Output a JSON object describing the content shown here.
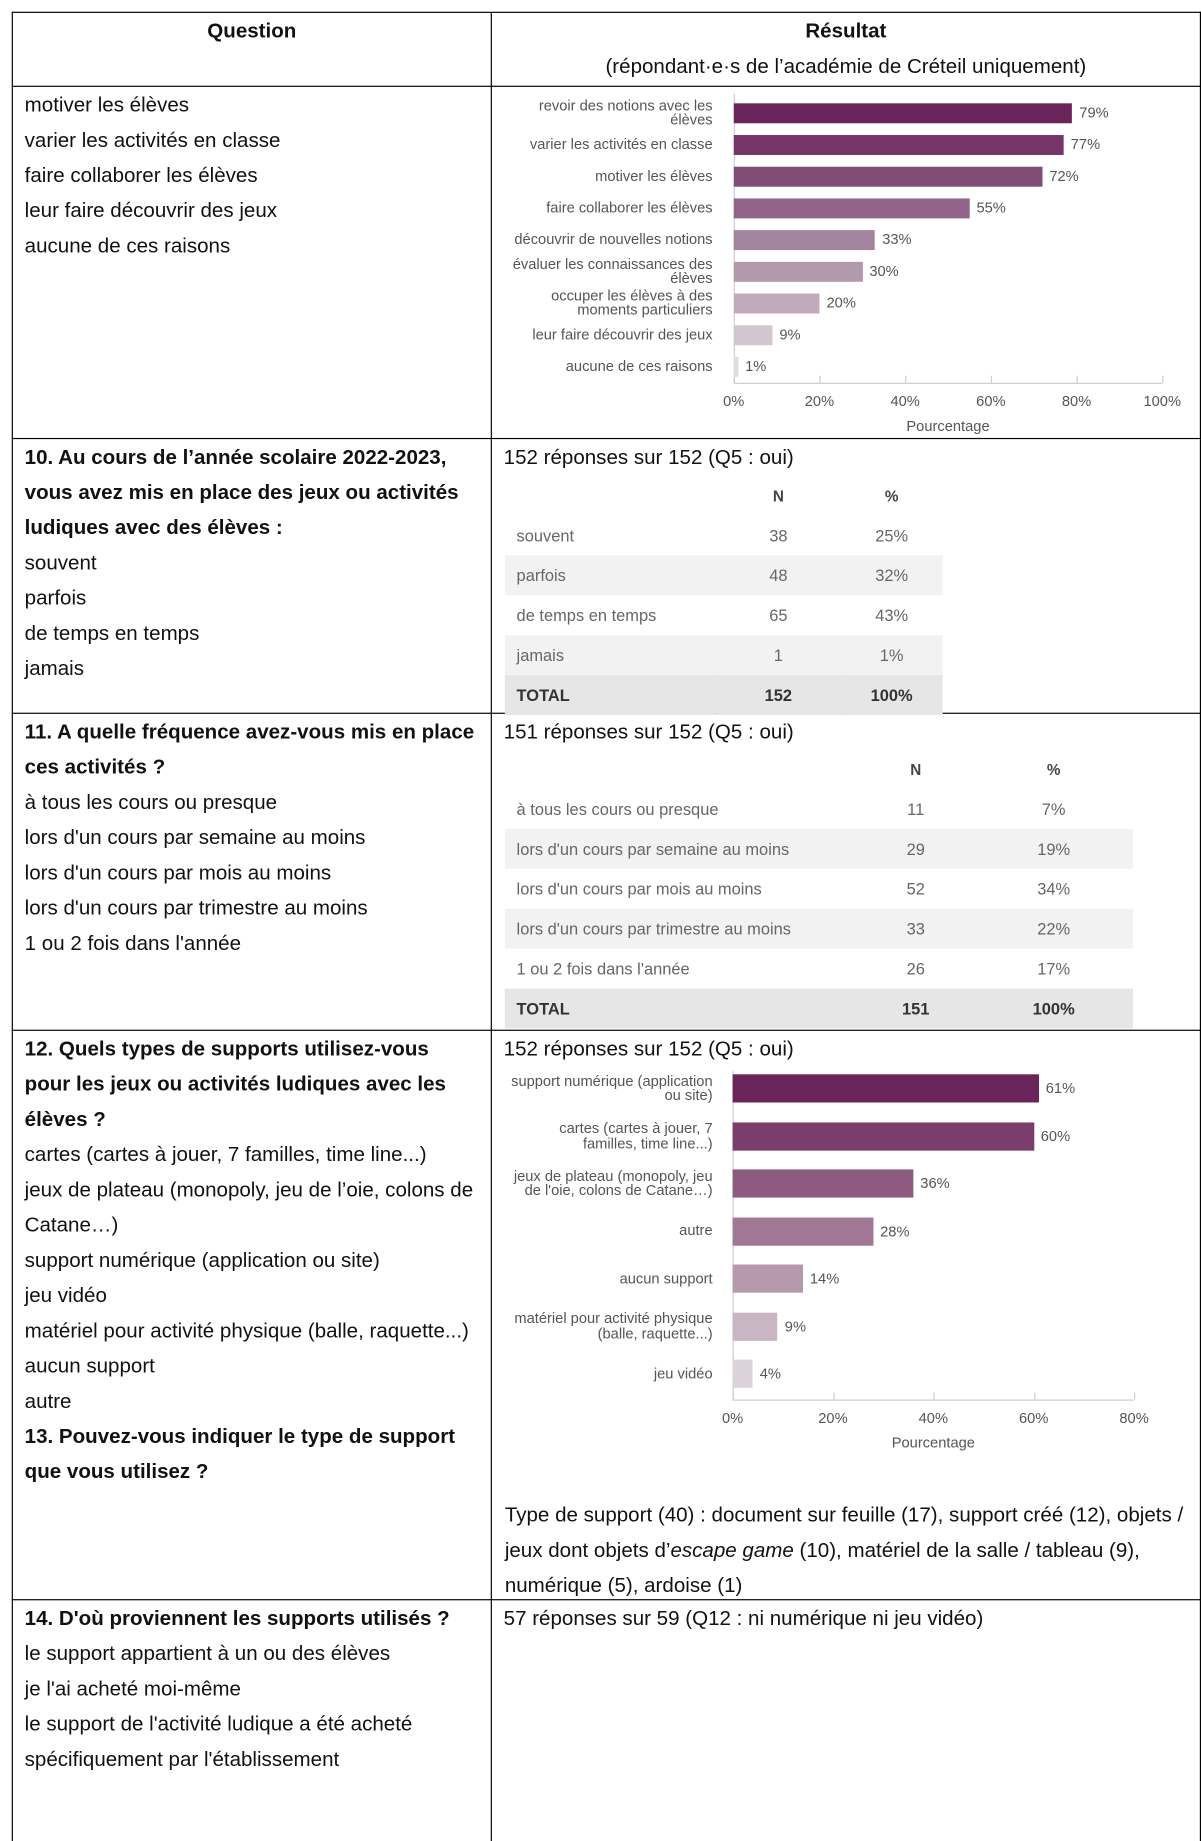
{
  "header": {
    "question": "Question",
    "result": "Résultat",
    "result_note": "(répondant·e·s de l’académie de Créteil uniquement)"
  },
  "rows": [
    {
      "options": [
        "motiver les élèves",
        "varier les activités en classe",
        "faire collaborer les élèves",
        "leur faire découvrir des jeux",
        "aucune de ces raisons"
      ],
      "chart_data": {
        "type": "bar",
        "orientation": "horizontal",
        "categories": [
          "revoir des notions avec les élèves",
          "varier les activités en classe",
          "motiver les élèves",
          "faire collaborer les élèves",
          "découvrir de nouvelles notions",
          "évaluer les connaissances des élèves",
          "occuper les élèves à des moments particuliers",
          "leur faire découvrir des jeux",
          "aucune de ces raisons"
        ],
        "values": [
          79,
          77,
          72,
          55,
          33,
          30,
          20,
          9,
          1
        ],
        "value_labels": [
          "79%",
          "77%",
          "72%",
          "55%",
          "33%",
          "30%",
          "20%",
          "9%",
          "1%"
        ],
        "colors": [
          "#6a2459",
          "#763569",
          "#814d76",
          "#926489",
          "#a4839d",
          "#b399ad",
          "#c1aabc",
          "#d3c6d0",
          "#e2d9e0"
        ],
        "xlim": [
          0,
          100
        ],
        "xticks": [
          {
            "value": 0,
            "label": "0%"
          },
          {
            "value": 20,
            "label": "20%"
          },
          {
            "value": 40,
            "label": "40%"
          },
          {
            "value": 60,
            "label": "60%"
          },
          {
            "value": 80,
            "label": "80%"
          },
          {
            "value": 100,
            "label": "100%"
          }
        ],
        "xlabel": "Pourcentage"
      }
    },
    {
      "question": "10. Au cours de l’année scolaire 2022-2023, vous avez mis en place des jeux ou activités ludiques avec des élèves :",
      "options": [
        "souvent",
        "parfois",
        "de temps en temps",
        "jamais"
      ],
      "responses": "152 réponses sur 152 (Q5 : oui)",
      "table": {
        "columns": [
          "N",
          "%"
        ],
        "rows": [
          [
            "souvent",
            38,
            "25%"
          ],
          [
            "parfois",
            48,
            "32%"
          ],
          [
            "de temps en temps",
            65,
            "43%"
          ],
          [
            "jamais",
            1,
            "1%"
          ]
        ],
        "total": [
          "TOTAL",
          152,
          "100%"
        ]
      }
    },
    {
      "question": "11. A quelle fréquence avez-vous mis en place ces activités ?",
      "options": [
        "à tous les cours ou presque",
        "lors d'un cours par semaine au moins",
        "lors d'un cours par mois au moins",
        "lors d'un cours par trimestre au moins",
        "1 ou 2 fois dans l'année"
      ],
      "responses": "151 réponses sur 152 (Q5 : oui)",
      "table": {
        "columns": [
          "N",
          "%"
        ],
        "rows": [
          [
            "à tous les cours ou presque",
            11,
            "7%"
          ],
          [
            "lors d'un cours par semaine au moins",
            29,
            "19%"
          ],
          [
            "lors d'un cours par mois au moins",
            52,
            "34%"
          ],
          [
            "lors d'un cours par trimestre au moins",
            33,
            "22%"
          ],
          [
            "1 ou 2 fois dans l'année",
            26,
            "17%"
          ]
        ],
        "total": [
          "TOTAL",
          151,
          "100%"
        ]
      }
    },
    {
      "question": "12. Quels types de supports utilisez-vous pour les jeux ou activités ludiques avec les élèves ?",
      "options": [
        "cartes (cartes à jouer, 7 familles, time line...)",
        "jeux de plateau (monopoly, jeu de l’oie, colons de Catane…)",
        "support numérique (application ou site)",
        "jeu vidéo",
        "matériel pour activité physique (balle, raquette...)",
        "aucun support",
        "autre"
      ],
      "responses": "152 réponses sur 152 (Q5 : oui)",
      "chart_data": {
        "type": "bar",
        "orientation": "horizontal",
        "categories": [
          "support numérique (application ou site)",
          "cartes (cartes à jouer, 7 familles, time line...)",
          "jeux de plateau (monopoly, jeu de l'oie, colons de Catane…)",
          "autre",
          "aucun support",
          "matériel pour activité physique (balle, raquette...)",
          "jeu vidéo"
        ],
        "values": [
          61,
          60,
          36,
          28,
          14,
          9,
          4
        ],
        "value_labels": [
          "61%",
          "60%",
          "36%",
          "28%",
          "14%",
          "9%",
          "4%"
        ],
        "colors": [
          "#6a2459",
          "#7a3d6c",
          "#8d5a80",
          "#a07794",
          "#b799ae",
          "#c9b5c4",
          "#dcd2da"
        ],
        "xlim": [
          0,
          80
        ],
        "xticks": [
          {
            "value": 0,
            "label": "0%"
          },
          {
            "value": 20,
            "label": "20%"
          },
          {
            "value": 40,
            "label": "40%"
          },
          {
            "value": 60,
            "label": "60%"
          },
          {
            "value": 80,
            "label": "80%"
          }
        ],
        "xlabel": "Pourcentage"
      },
      "followup_question": "13. Pouvez-vous indiquer le type de support que vous utilisez ?",
      "followup_answer": [
        "Type de support (40) : document sur feuille (17), support créé (12), objets / jeux dont objets d’",
        "escape game",
        " (10), matériel de la salle / tableau (9), numérique (5), ardoise (1)"
      ]
    },
    {
      "question": "14. D'où proviennent les supports utilisés ?",
      "options": [
        "le support appartient à un ou des élèves",
        "je l'ai acheté moi-même",
        "le support de l'activité ludique a été acheté spécifiquement par l'établissement"
      ],
      "responses": "57 réponses sur 59 (Q12 : ni numérique ni jeu vidéo)"
    }
  ]
}
